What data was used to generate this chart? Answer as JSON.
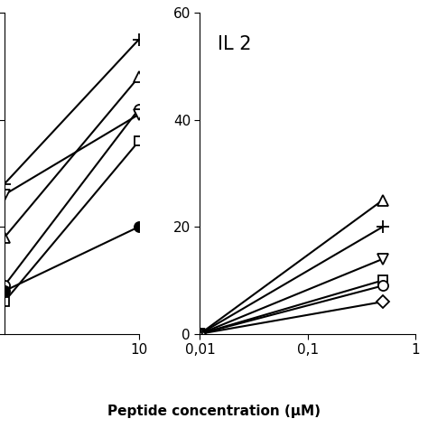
{
  "xlabel": "Peptide concentration (μM)",
  "left_panel": {
    "xlim": [
      1,
      10
    ],
    "ylim": [
      0,
      60
    ],
    "yticks": [
      0,
      20,
      40,
      60
    ],
    "x_values": [
      1,
      10
    ],
    "series": [
      {
        "marker": "+",
        "y": [
          28,
          55
        ],
        "filled": false,
        "markersize": 10
      },
      {
        "marker": "^",
        "y": [
          18,
          48
        ],
        "filled": false,
        "markersize": 8
      },
      {
        "marker": "o",
        "y": [
          9,
          42
        ],
        "filled": false,
        "markersize": 8
      },
      {
        "marker": "v",
        "y": [
          26,
          41
        ],
        "filled": false,
        "markersize": 8
      },
      {
        "marker": "s",
        "y": [
          6,
          36
        ],
        "filled": false,
        "markersize": 7
      },
      {
        "marker": "o",
        "y": [
          8,
          20
        ],
        "filled": true,
        "markersize": 8
      }
    ]
  },
  "right_panel": {
    "label": "IL 2",
    "xlim": [
      0.01,
      1.0
    ],
    "ylim": [
      0,
      60
    ],
    "yticks": [
      0,
      20,
      40,
      60
    ],
    "x_values": [
      0.01,
      0.5
    ],
    "series": [
      {
        "marker": "+",
        "y": [
          0,
          20
        ],
        "filled": false,
        "markersize": 10
      },
      {
        "marker": "v",
        "y": [
          0,
          14
        ],
        "filled": false,
        "markersize": 8
      },
      {
        "marker": "s",
        "y": [
          0,
          10
        ],
        "filled": false,
        "markersize": 7
      },
      {
        "marker": "o",
        "y": [
          0,
          9
        ],
        "filled": false,
        "markersize": 8
      },
      {
        "marker": "D",
        "y": [
          0,
          6
        ],
        "filled": false,
        "markersize": 7
      },
      {
        "marker": "^",
        "y": [
          0,
          25
        ],
        "filled": false,
        "markersize": 8
      }
    ]
  },
  "bg_color": "#ffffff",
  "line_color": "#000000",
  "linewidth": 1.5
}
